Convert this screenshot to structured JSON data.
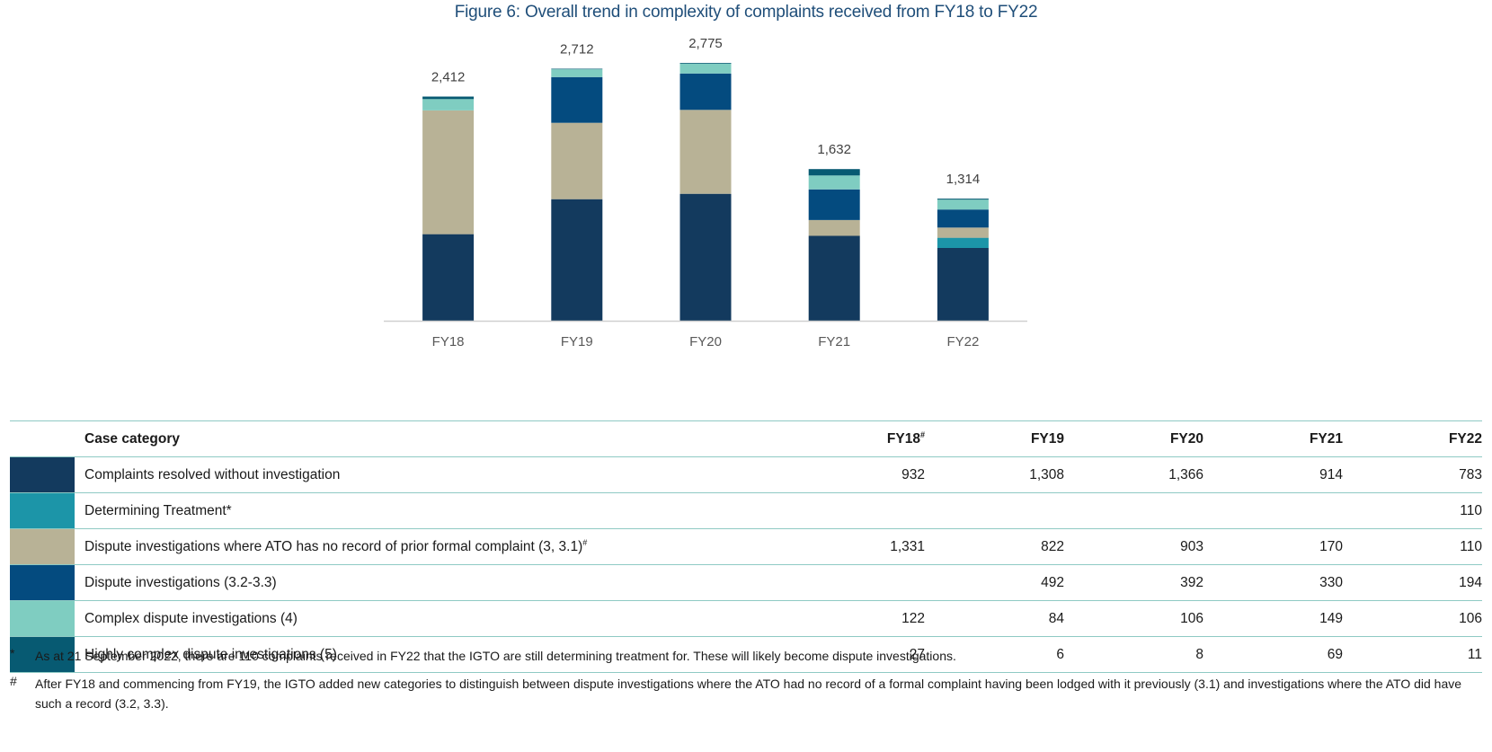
{
  "chart_data": {
    "type": "bar",
    "stacked": true,
    "title": "Figure 6: Overall trend in complexity of complaints received from FY18 to FY22",
    "xlabel": "",
    "ylabel": "",
    "ylim": [
      0,
      2800
    ],
    "grid": false,
    "legend": "table-below",
    "categories": [
      "FY18",
      "FY19",
      "FY20",
      "FY21",
      "FY22"
    ],
    "totals": [
      "2,412",
      "2,712",
      "2,775",
      "1,632",
      "1,314"
    ],
    "series": [
      {
        "name": "Complaints resolved without investigation",
        "color": "#133a5e",
        "values": [
          932,
          1308,
          1366,
          914,
          783
        ]
      },
      {
        "name": "Determining Treatment*",
        "color": "#1c95a8",
        "values": [
          0,
          0,
          0,
          0,
          110
        ]
      },
      {
        "name": "Dispute investigations where ATO has no record of prior formal complaint (3, 3.1)#",
        "color": "#b8b296",
        "values": [
          1331,
          822,
          903,
          170,
          110
        ]
      },
      {
        "name": "Dispute investigations (3.2-3.3)",
        "color": "#044b7f",
        "values": [
          0,
          492,
          392,
          330,
          194
        ]
      },
      {
        "name": "Complex dispute investigations (4)",
        "color": "#7fcdc1",
        "values": [
          122,
          84,
          106,
          149,
          106
        ]
      },
      {
        "name": "Highly complex dispute investigations (5)",
        "color": "#075a72",
        "values": [
          27,
          6,
          8,
          69,
          11
        ]
      }
    ]
  },
  "table": {
    "header": {
      "category": "Case category",
      "years": [
        {
          "label": "FY18",
          "mark": "#"
        },
        {
          "label": "FY19",
          "mark": ""
        },
        {
          "label": "FY20",
          "mark": ""
        },
        {
          "label": "FY21",
          "mark": ""
        },
        {
          "label": "FY22",
          "mark": ""
        }
      ]
    },
    "rows": [
      {
        "label": "Complaints resolved without investigation",
        "mark": "",
        "color": "#133a5e",
        "cells": [
          "932",
          "1,308",
          "1,366",
          "914",
          "783"
        ]
      },
      {
        "label": "Determining Treatment*",
        "mark": "",
        "color": "#1c95a8",
        "cells": [
          "",
          "",
          "",
          "",
          "110"
        ]
      },
      {
        "label": "Dispute investigations where ATO has no record of prior formal complaint (3, 3.1)",
        "mark": "#",
        "color": "#b8b296",
        "cells": [
          "1,331",
          "822",
          "903",
          "170",
          "110"
        ]
      },
      {
        "label": "Dispute investigations (3.2-3.3)",
        "mark": "",
        "color": "#044b7f",
        "cells": [
          "",
          "492",
          "392",
          "330",
          "194"
        ]
      },
      {
        "label": "Complex dispute investigations (4)",
        "mark": "",
        "color": "#7fcdc1",
        "cells": [
          "122",
          "84",
          "106",
          "149",
          "106"
        ]
      },
      {
        "label": "Highly complex dispute investigations (5)",
        "mark": "",
        "color": "#075a72",
        "cells": [
          "27",
          "6",
          "8",
          "69",
          "11"
        ]
      }
    ]
  },
  "notes": [
    {
      "symbol": "*",
      "text": "As at 21 September 2022, there are 110 complaints received in FY22 that the IGTO are still determining treatment for. These will likely become dispute investigations."
    },
    {
      "symbol": "#",
      "text": "After FY18 and commencing from FY19, the IGTO added new categories to distinguish between dispute investigations where the ATO had no record of a formal complaint having been lodged with it previously (3.1) and investigations where the ATO did have such a record (3.2, 3.3)."
    }
  ]
}
